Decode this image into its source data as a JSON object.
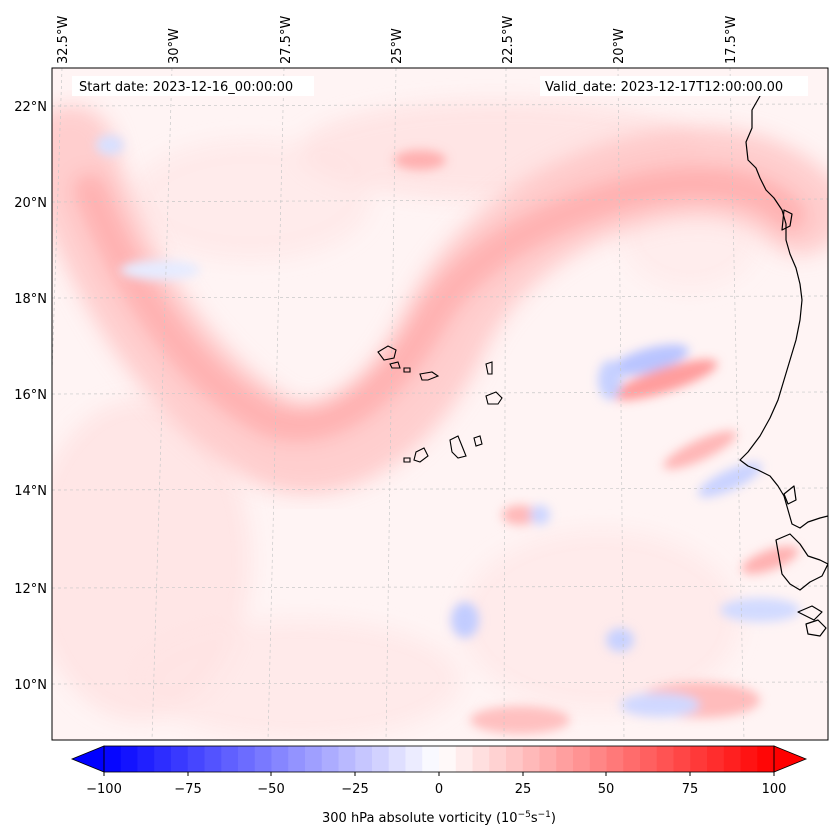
{
  "map": {
    "start_label": "Start date: 2023-12-16_00:00:00",
    "valid_label": "Valid_date: 2023-12-17T12:00:00.00",
    "lon_ticks": [
      "32.5°W",
      "30°W",
      "27.5°W",
      "25°W",
      "22.5°W",
      "20°W",
      "17.5°W"
    ],
    "lat_ticks": [
      "22°N",
      "20°N",
      "18°N",
      "16°N",
      "14°N",
      "12°N",
      "10°N"
    ]
  },
  "colorbar": {
    "label_prefix": "300 hPa absolute vorticity (10",
    "label_exp1": "−5",
    "label_mid": "s",
    "label_exp2": "−1",
    "label_suffix": ")",
    "ticks": [
      "−100",
      "−75",
      "−50",
      "−25",
      "0",
      "25",
      "50",
      "75",
      "100"
    ],
    "min": -100,
    "max": 100,
    "colormap": "bwr",
    "low_color": "#0000ff",
    "mid_color": "#ffffff",
    "high_color": "#ff0000"
  },
  "colors": {
    "coastline": "#000000",
    "gridline": "#bfbfbf",
    "field_positive": "#ffd0d0",
    "field_positive_strong": "#ffaaaa",
    "field_negative": "#dde4ff",
    "field_negative_strong": "#aab8ff"
  }
}
